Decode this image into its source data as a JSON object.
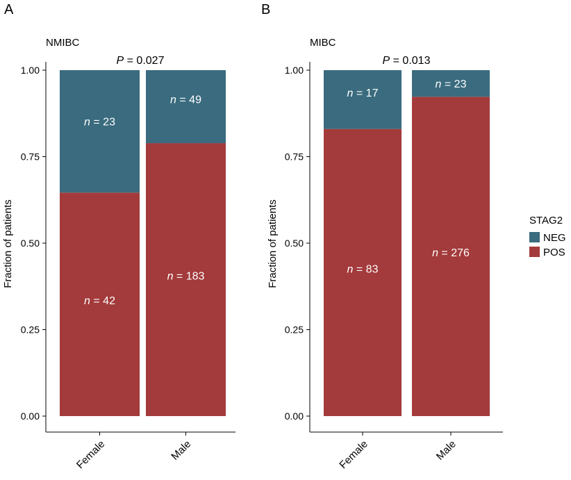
{
  "colors": {
    "NEG": "#3a6b7e",
    "POS": "#a33a3b"
  },
  "legend": {
    "title": "STAG2",
    "items": [
      {
        "key": "NEG",
        "label": "NEG"
      },
      {
        "key": "POS",
        "label": "POS"
      }
    ]
  },
  "chart_data": [
    {
      "type": "bar",
      "stacked": true,
      "panel_label": "A",
      "title": "NMIBC",
      "p_label": "P",
      "p_text": " = 0.027",
      "ylabel": "Fraction of patients",
      "ylim": [
        0,
        1
      ],
      "yticks": [
        "0.00",
        "0.25",
        "0.50",
        "0.75",
        "1.00"
      ],
      "categories": [
        "Female",
        "Male"
      ],
      "series": [
        {
          "name": "POS",
          "values": [
            0.646,
            0.789
          ],
          "labels": [
            "n = 42",
            "n = 183"
          ]
        },
        {
          "name": "NEG",
          "values": [
            0.354,
            0.211
          ],
          "labels": [
            "n = 23",
            "n = 49"
          ]
        }
      ]
    },
    {
      "type": "bar",
      "stacked": true,
      "panel_label": "B",
      "title": "MIBC",
      "p_label": "P",
      "p_text": " = 0.013",
      "ylabel": "Fraction of patients",
      "ylim": [
        0,
        1
      ],
      "yticks": [
        "0.00",
        "0.25",
        "0.50",
        "0.75",
        "1.00"
      ],
      "categories": [
        "Female",
        "Male"
      ],
      "series": [
        {
          "name": "POS",
          "values": [
            0.83,
            0.923
          ],
          "labels": [
            "n = 83",
            "n = 276"
          ]
        },
        {
          "name": "NEG",
          "values": [
            0.17,
            0.077
          ],
          "labels": [
            "n = 17",
            "n = 23"
          ]
        }
      ]
    }
  ]
}
